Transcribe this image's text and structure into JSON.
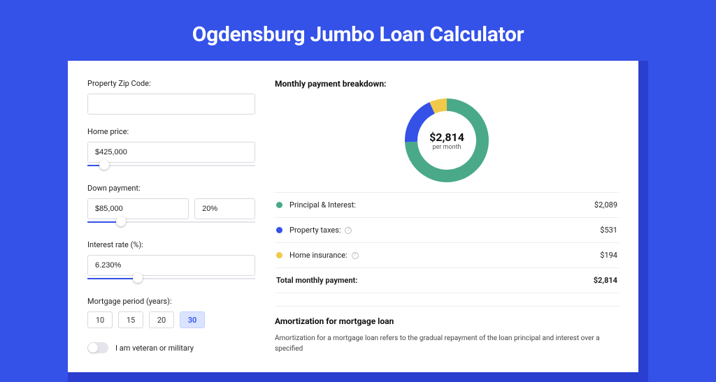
{
  "page": {
    "title": "Ogdensburg Jumbo Loan Calculator",
    "bg_color": "#3451e8",
    "shadow_color": "#2a3fcf"
  },
  "form": {
    "zip": {
      "label": "Property Zip Code:",
      "value": ""
    },
    "home_price": {
      "label": "Home price:",
      "value": "$425,000",
      "slider_pct": 10
    },
    "down_payment": {
      "label": "Down payment:",
      "value": "$85,000",
      "pct_value": "20%",
      "slider_pct": 20
    },
    "interest": {
      "label": "Interest rate (%):",
      "value": "6.230%",
      "slider_pct": 30
    },
    "mortgage_period": {
      "label": "Mortgage period (years):",
      "options": [
        "10",
        "15",
        "20",
        "30"
      ],
      "active_index": 3
    },
    "veteran": {
      "label": "I am veteran or military",
      "checked": false
    }
  },
  "breakdown": {
    "title": "Monthly payment breakdown:",
    "donut": {
      "center_amount": "$2,814",
      "center_sub": "per month",
      "thickness": 18,
      "slices": [
        {
          "key": "principal_interest",
          "color": "#49a989",
          "pct": 74.2
        },
        {
          "key": "property_taxes",
          "color": "#3451e8",
          "pct": 18.9
        },
        {
          "key": "home_insurance",
          "color": "#f0c94a",
          "pct": 6.9
        }
      ]
    },
    "legend": [
      {
        "label": "Principal & Interest:",
        "value": "$2,089",
        "color": "#49a989",
        "info": false
      },
      {
        "label": "Property taxes:",
        "value": "$531",
        "color": "#3451e8",
        "info": true
      },
      {
        "label": "Home insurance:",
        "value": "$194",
        "color": "#f0c94a",
        "info": true
      }
    ],
    "total": {
      "label": "Total monthly payment:",
      "value": "$2,814"
    }
  },
  "amortization": {
    "title": "Amortization for mortgage loan",
    "text": "Amortization for a mortgage loan refers to the gradual repayment of the loan principal and interest over a specified"
  }
}
